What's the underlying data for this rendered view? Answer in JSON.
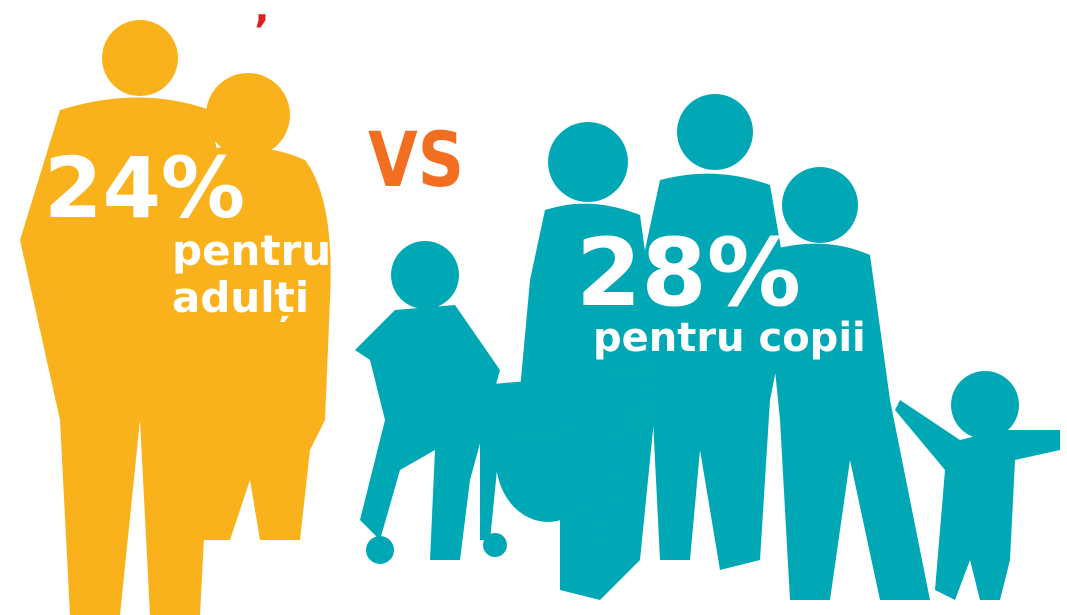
{
  "top_mark": ",",
  "adults": {
    "percent": "24%",
    "label_line1": "pentru",
    "label_line2": "adulți"
  },
  "versus": "VS",
  "children": {
    "percent": "28%",
    "label": "pentru copii"
  }
}
